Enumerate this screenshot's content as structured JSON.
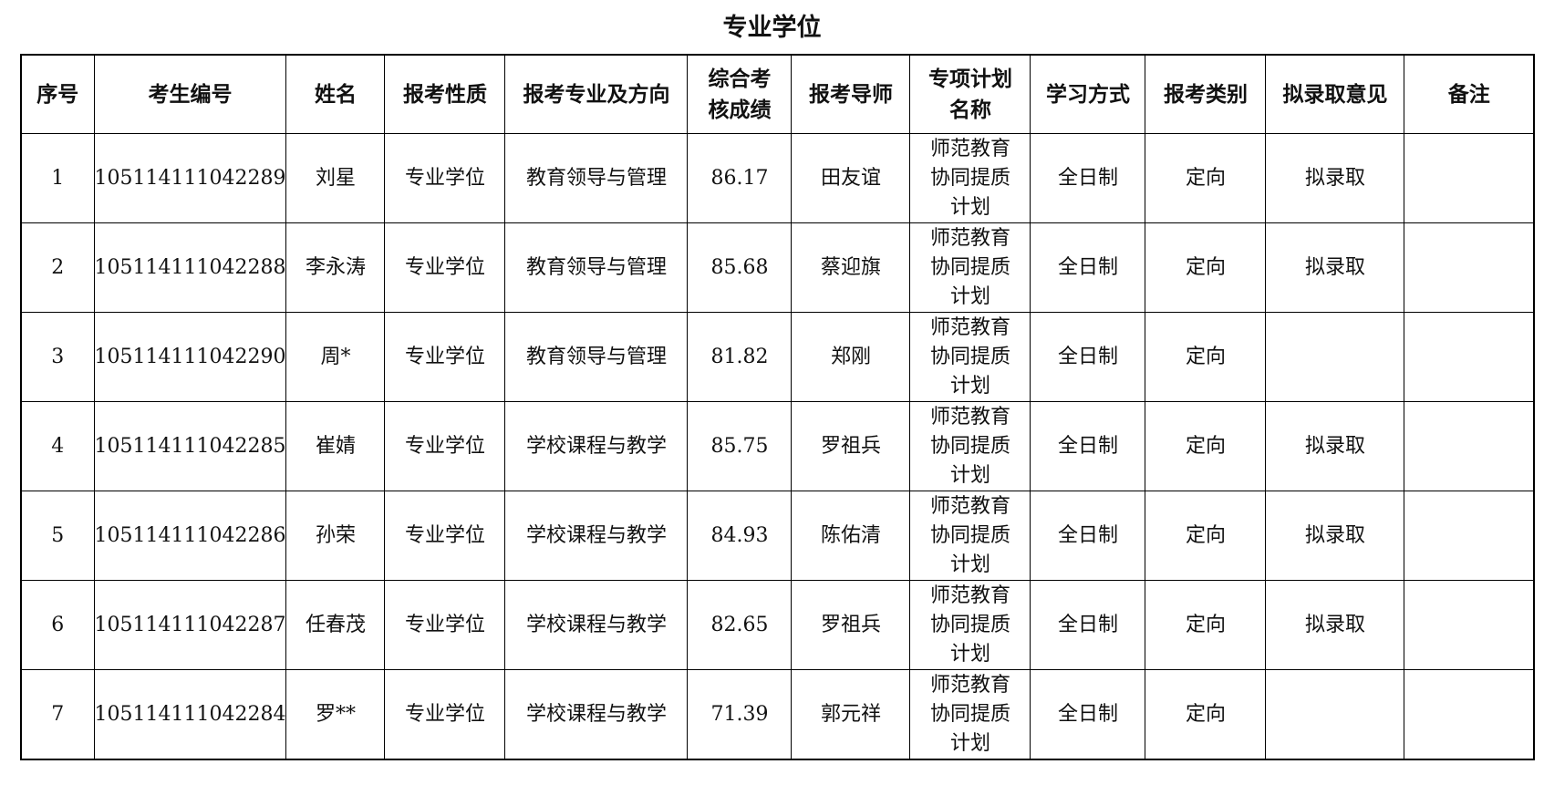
{
  "title": "专业学位",
  "headers": [
    "序号",
    "考生编号",
    "姓名",
    "报考性质",
    "报考专业及方向",
    "综合考核成绩",
    "报考导师",
    "专项计划名称",
    "学习方式",
    "报考类别",
    "拟录取意见",
    "备注"
  ],
  "rows": [
    [
      "1",
      "105114111042289",
      "刘星",
      "专业学位",
      "教育领导与管理",
      "86.17",
      "田友谊",
      "师范教育协同提质计划",
      "全日制",
      "定向",
      "拟录取",
      ""
    ],
    [
      "2",
      "105114111042288",
      "李永涛",
      "专业学位",
      "教育领导与管理",
      "85.68",
      "蔡迎旗",
      "师范教育协同提质计划",
      "全日制",
      "定向",
      "拟录取",
      ""
    ],
    [
      "3",
      "105114111042290",
      "周*",
      "专业学位",
      "教育领导与管理",
      "81.82",
      "郑刚",
      "师范教育协同提质计划",
      "全日制",
      "定向",
      "",
      ""
    ],
    [
      "4",
      "105114111042285",
      "崔婧",
      "专业学位",
      "学校课程与教学",
      "85.75",
      "罗祖兵",
      "师范教育协同提质计划",
      "全日制",
      "定向",
      "拟录取",
      ""
    ],
    [
      "5",
      "105114111042286",
      "孙荣",
      "专业学位",
      "学校课程与教学",
      "84.93",
      "陈佑清",
      "师范教育协同提质计划",
      "全日制",
      "定向",
      "拟录取",
      ""
    ],
    [
      "6",
      "105114111042287",
      "任春茂",
      "专业学位",
      "学校课程与教学",
      "82.65",
      "罗祖兵",
      "师范教育协同提质计划",
      "全日制",
      "定向",
      "拟录取",
      ""
    ],
    [
      "7",
      "105114111042284",
      "罗**",
      "专业学位",
      "学校课程与教学",
      "71.39",
      "郭元祥",
      "师范教育协同提质计划",
      "全日制",
      "定向",
      "",
      ""
    ]
  ]
}
